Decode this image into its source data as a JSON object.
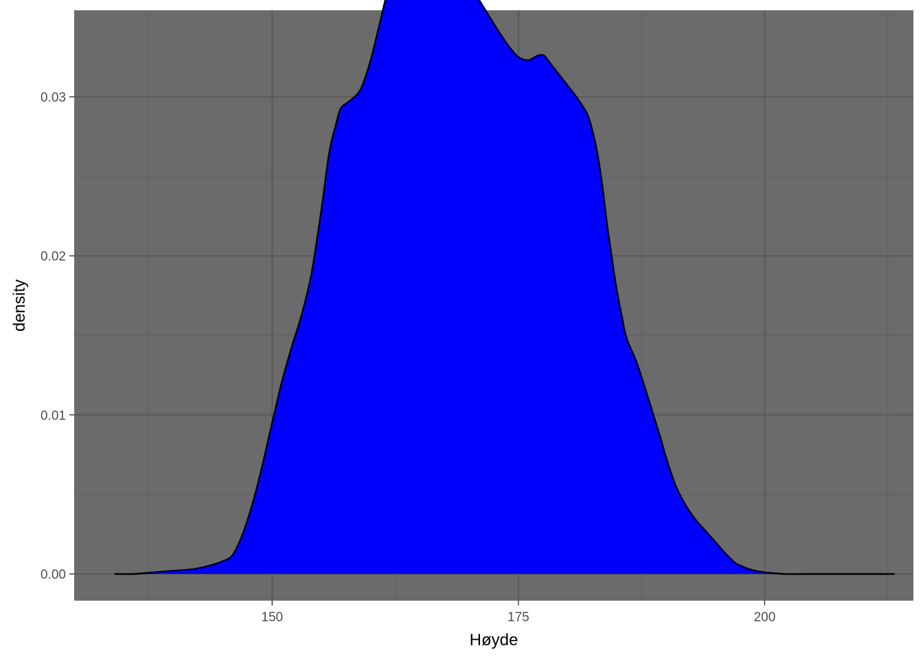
{
  "chart_data": {
    "type": "area",
    "title": "",
    "xlabel": "Høyde",
    "ylabel": "density",
    "xlim": [
      129.9,
      215.1
    ],
    "ylim": [
      -0.00168,
      0.03544
    ],
    "x_ticks": [
      150,
      175,
      200
    ],
    "x_tick_labels": [
      "150",
      "175",
      "200"
    ],
    "x_minor_ticks": [
      137.5,
      162.5,
      187.5,
      212.5
    ],
    "y_ticks": [
      0.0,
      0.01,
      0.02,
      0.03
    ],
    "y_tick_labels": [
      "0.00",
      "0.01",
      "0.02",
      "0.03"
    ],
    "y_minor_ticks": [
      0.005,
      0.015,
      0.025
    ],
    "grid": true,
    "legend": "none",
    "series": [
      {
        "x": [
          134.0,
          136.0,
          138.0,
          140.0,
          142.0,
          143.5,
          145.0,
          146.0,
          147.0,
          148.0,
          149.0,
          150.0,
          151.0,
          152.0,
          153.0,
          154.0,
          155.0,
          155.8,
          156.5,
          157.0,
          158.0,
          159.0,
          160.0,
          160.8,
          161.5,
          162.0,
          162.5,
          163.0,
          164.0,
          165.0,
          166.0,
          167.0,
          167.6,
          168.0,
          169.0,
          170.0,
          171.0,
          172.0,
          173.0,
          174.0,
          175.0,
          176.0,
          177.0,
          177.6,
          178.0,
          179.0,
          180.0,
          181.0,
          182.0,
          182.5,
          183.0,
          183.5,
          184.0,
          184.5,
          185.0,
          185.5,
          186.0,
          187.0,
          188.0,
          188.5,
          189.0,
          189.5,
          190.0,
          191.0,
          192.0,
          193.0,
          194.0,
          195.0,
          196.0,
          197.0,
          198.0,
          199.0,
          200.0,
          202.0,
          204.0,
          206.0,
          208.0,
          210.0,
          212.0,
          213.2
        ],
        "y": [
          0.0,
          0.0,
          0.0001,
          0.0002,
          0.0003,
          0.0005,
          0.0008,
          0.0012,
          0.0025,
          0.0044,
          0.0068,
          0.0095,
          0.0121,
          0.0143,
          0.0163,
          0.0189,
          0.0229,
          0.0265,
          0.0283,
          0.0293,
          0.0298,
          0.0305,
          0.0323,
          0.0343,
          0.0361,
          0.037,
          0.0375,
          0.0377,
          0.0379,
          0.0381,
          0.0384,
          0.0387,
          0.0387,
          0.0386,
          0.038,
          0.0371,
          0.0361,
          0.0351,
          0.0341,
          0.0332,
          0.0325,
          0.0323,
          0.0326,
          0.0326,
          0.0323,
          0.0315,
          0.0307,
          0.0299,
          0.0289,
          0.0279,
          0.0265,
          0.0245,
          0.022,
          0.0198,
          0.0178,
          0.0162,
          0.0148,
          0.0133,
          0.0114,
          0.0104,
          0.0094,
          0.0084,
          0.0073,
          0.0055,
          0.0043,
          0.0034,
          0.0027,
          0.002,
          0.0013,
          0.0007,
          0.0004,
          0.0002,
          0.0001,
          0.0,
          0.0,
          0.0,
          0.0,
          0.0,
          0.0,
          0.0
        ]
      }
    ],
    "colors": {
      "panel_background": "#6b6b6b",
      "grid_major": "#555555",
      "grid_minor": "#606060",
      "fill": "#0000ff",
      "outline": "#000000"
    }
  }
}
